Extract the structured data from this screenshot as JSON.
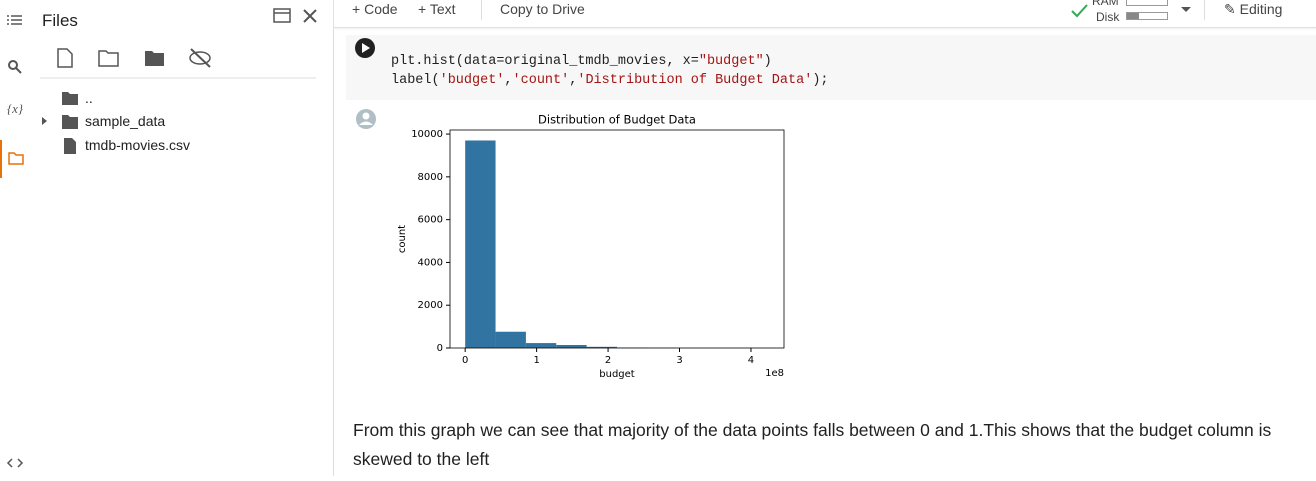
{
  "sidebar": {
    "title": "Files",
    "variables_icon": "{x}",
    "tree": [
      "..",
      "sample_data",
      "tmdb-movies.csv"
    ]
  },
  "toolbar": {
    "add_code": "Code",
    "add_text": "Text",
    "copy": "Copy to Drive",
    "ram": "RAM",
    "disk": "Disk",
    "mode": "Editing"
  },
  "code_cell": {
    "lines": [
      [
        "plt.hist(data=original_tmdb_movies, x=",
        "\"budget\"",
        ")"
      ],
      [
        "label(",
        "'budget'",
        ",",
        "'count'",
        ",",
        "'Distribution of Budget Data'",
        ");"
      ]
    ]
  },
  "chart_data": {
    "type": "histogram",
    "title": "Distribution of Budget Data",
    "x_label": "budget",
    "y_label": "count",
    "x_offset_label": "1e8",
    "color": "#3274a1",
    "bins": [
      0,
      42500000,
      85000000,
      127500000,
      170000000,
      212500000,
      255000000,
      297500000,
      340000000,
      382500000,
      425000000
    ],
    "values": [
      9700,
      760,
      230,
      140,
      55,
      15,
      6,
      3,
      1,
      1
    ],
    "xlim": [
      -21250000,
      446250000
    ],
    "ylim": [
      0,
      10190
    ],
    "xticks": [
      {
        "value": 0,
        "label": "0"
      },
      {
        "value": 100000000,
        "label": "1"
      },
      {
        "value": 200000000,
        "label": "2"
      },
      {
        "value": 300000000,
        "label": "3"
      },
      {
        "value": 400000000,
        "label": "4"
      }
    ],
    "yticks": [
      0,
      2000,
      4000,
      6000,
      8000,
      10000
    ]
  },
  "markdown": "From this graph we can see that majority of the data points falls between 0 and 1.This shows that the budget column is skewed to the left"
}
